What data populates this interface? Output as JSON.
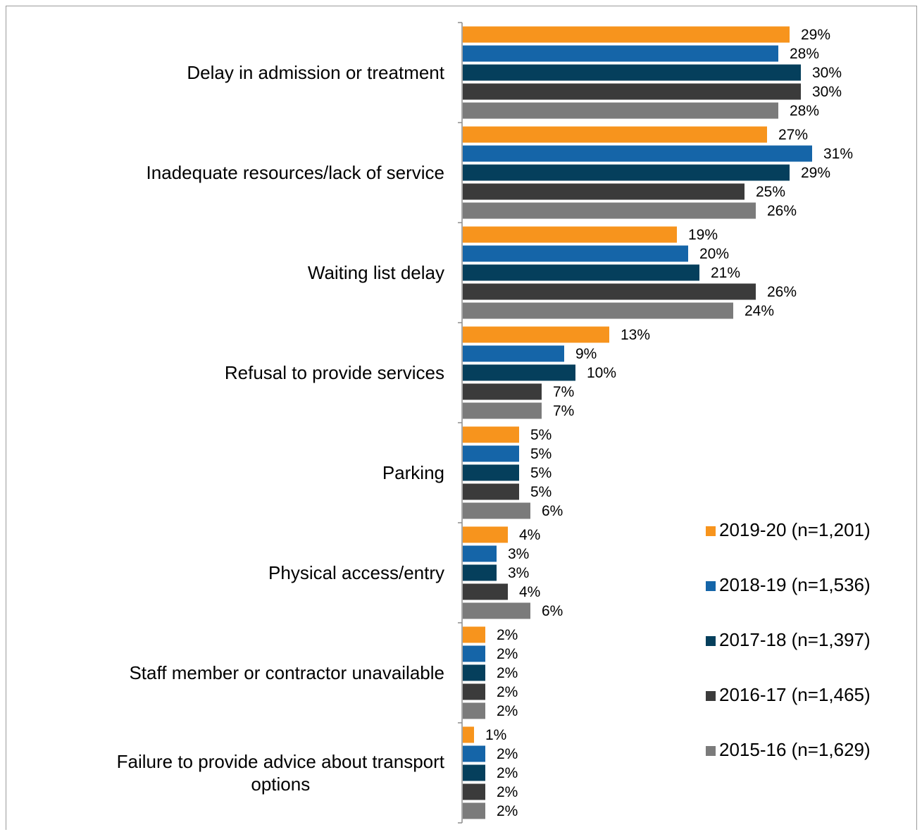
{
  "chart_data": {
    "type": "bar",
    "orientation": "horizontal",
    "categories": [
      [
        "Delay in admission or treatment"
      ],
      [
        "Inadequate resources/lack of service"
      ],
      [
        "Waiting list delay"
      ],
      [
        "Refusal to provide services"
      ],
      [
        "Parking"
      ],
      [
        "Physical access/entry"
      ],
      [
        "Staff member or contractor unavailable"
      ],
      [
        "Failure to provide advice about transport",
        "options"
      ]
    ],
    "series": [
      {
        "name": "2019-20 (n=1,201)",
        "color": "#F7941D",
        "values": [
          29,
          27,
          19,
          13,
          5,
          4,
          2,
          1
        ],
        "labels": [
          "29%",
          "27%",
          "19%",
          "13%",
          "5%",
          "4%",
          "2%",
          "1%"
        ]
      },
      {
        "name": "2018-19 (n=1,536)",
        "color": "#1565A8",
        "values": [
          28,
          31,
          20,
          9,
          5,
          3,
          2,
          2
        ],
        "labels": [
          "28%",
          "31%",
          "20%",
          "9%",
          "5%",
          "3%",
          "2%",
          "2%"
        ]
      },
      {
        "name": "2017-18 (n=1,397)",
        "color": "#053F5C",
        "values": [
          30,
          29,
          21,
          10,
          5,
          3,
          2,
          2
        ],
        "labels": [
          "30%",
          "29%",
          "21%",
          "10%",
          "5%",
          "3%",
          "2%",
          "2%"
        ]
      },
      {
        "name": "2016-17 (n=1,465)",
        "color": "#3B3B3B",
        "values": [
          30,
          25,
          26,
          7,
          5,
          4,
          2,
          2
        ],
        "labels": [
          "30%",
          "25%",
          "26%",
          "7%",
          "5%",
          "4%",
          "2%",
          "2%"
        ]
      },
      {
        "name": "2015-16 (n=1,629)",
        "color": "#7B7B7B",
        "values": [
          28,
          26,
          24,
          7,
          6,
          6,
          2,
          2
        ],
        "labels": [
          "28%",
          "26%",
          "24%",
          "7%",
          "6%",
          "6%",
          "2%",
          "2%"
        ]
      }
    ],
    "xlim": [
      0,
      100
    ],
    "grid": false,
    "legend_position": "right-bottom"
  }
}
